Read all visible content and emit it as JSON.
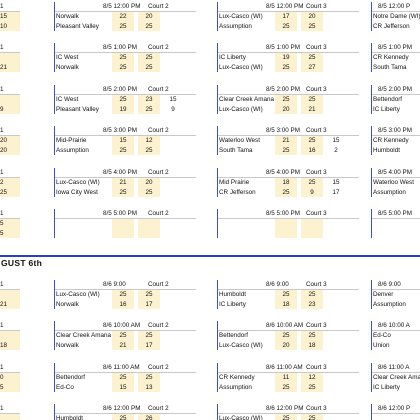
{
  "day_title": "GUST 6th",
  "left_edge_day1": [
    {
      "header": "1",
      "r1": "15",
      "r2": "10"
    },
    {
      "header": "1",
      "r1": "",
      "r2": "21"
    },
    {
      "header": "1",
      "r1": "",
      "r2": "9"
    },
    {
      "header": "1",
      "r1": "20",
      "r2": "20"
    },
    {
      "header": "1",
      "r1": "2",
      "r2": "25"
    },
    {
      "header": "1",
      "r1": "5",
      "r2": "5"
    }
  ],
  "left_edge_day2": [
    {
      "header": "1",
      "r1": "",
      "r2": "21"
    },
    {
      "header": "1",
      "r1": "",
      "r2": "18"
    },
    {
      "header": "1",
      "r1": "0",
      "r2": "5"
    },
    {
      "header": "1",
      "r1": "",
      "r2": ""
    }
  ],
  "col1_day1": [
    {
      "time": "8/5 12:00 PM",
      "court": "Court 2",
      "t1": "Norwalk",
      "s11": "22",
      "s12": "20",
      "s13": "",
      "t2": "Pleasant Valley",
      "s21": "25",
      "s22": "25",
      "s23": ""
    },
    {
      "time": "8/5 1:00 PM",
      "court": "Court 2",
      "t1": "IC West",
      "s11": "25",
      "s12": "25",
      "s13": "",
      "t2": "Norwalk",
      "s21": "25",
      "s22": "25",
      "s23": ""
    },
    {
      "time": "8/5 2:00 PM",
      "court": "Court 2",
      "t1": "IC West",
      "s11": "25",
      "s12": "23",
      "s13": "15",
      "t2": "Pleasant Valley",
      "s21": "19",
      "s22": "25",
      "s23": "9"
    },
    {
      "time": "8/5 3:00 PM",
      "court": "Court 2",
      "t1": "Mid-Prairie",
      "s11": "15",
      "s12": "12",
      "s13": "",
      "t2": "Assumption",
      "s21": "25",
      "s22": "25",
      "s23": ""
    },
    {
      "time": "8/5 4:00 PM",
      "court": "Court 2",
      "t1": "Lux-Casco (WI)",
      "s11": "21",
      "s12": "20",
      "s13": "",
      "t2": "Iowa City West",
      "s21": "25",
      "s22": "25",
      "s23": ""
    },
    {
      "time": "8/5 5:00 PM",
      "court": "Court 2",
      "t1": "",
      "s11": "",
      "s12": "",
      "s13": "",
      "t2": "",
      "s21": "",
      "s22": "",
      "s23": ""
    }
  ],
  "col2_day1": [
    {
      "time": "8/5 12:00 PM",
      "court": "Court 3",
      "t1": "Lux-Casco (WI)",
      "s11": "17",
      "s12": "20",
      "s13": "",
      "t2": "Assumption",
      "s21": "25",
      "s22": "25",
      "s23": ""
    },
    {
      "time": "8/5 1:00 PM",
      "court": "Court 3",
      "t1": "IC Liberty",
      "s11": "19",
      "s12": "25",
      "s13": "",
      "t2": "Lux-Casco (WI)",
      "s21": "25",
      "s22": "27",
      "s23": ""
    },
    {
      "time": "8/5 2:00 PM",
      "court": "Court 3",
      "t1": "Clear Creek Amana",
      "s11": "25",
      "s12": "25",
      "s13": "",
      "t2": "Lux-Casco (WI)",
      "s21": "20",
      "s22": "21",
      "s23": ""
    },
    {
      "time": "8/5 3:00 PM",
      "court": "Court 3",
      "t1": "Waterloo West",
      "s11": "21",
      "s12": "25",
      "s13": "15",
      "t2": "South Tama",
      "s21": "25",
      "s22": "16",
      "s23": "2"
    },
    {
      "time": "8/5 4:00 PM",
      "court": "Court 3",
      "t1": "Mid Prairie",
      "s11": "18",
      "s12": "25",
      "s13": "15",
      "t2": "CR Jefferson",
      "s21": "25",
      "s22": "9",
      "s23": "17"
    },
    {
      "time": "8/5 5:00 PM",
      "court": "Court 3",
      "t1": "",
      "s11": "",
      "s12": "",
      "s13": "",
      "t2": "",
      "s21": "",
      "s22": "",
      "s23": ""
    }
  ],
  "col3_day1": [
    {
      "time": "8/5 12:00 P",
      "t1": "Notre Dame (WI)",
      "t2": "CR Jefferson"
    },
    {
      "time": "8/5 1:00 PM",
      "t1": "CR Kennedy",
      "t2": "South Tama"
    },
    {
      "time": "8/5 2:00 PM",
      "t1": "Bettendorf",
      "t2": "IC Liberty"
    },
    {
      "time": "8/5 3:00 PM",
      "t1": "CR Kennedy",
      "t2": "Humboldt"
    },
    {
      "time": "8/5 4:00 PM",
      "t1": "Waterloo West",
      "t2": "Assumption"
    },
    {
      "time": "8/5 5:00 PM",
      "t1": "",
      "t2": ""
    }
  ],
  "col1_day2": [
    {
      "time": "8/6 9:00",
      "court": "Court 2",
      "t1": "Lux-Casco (WI)",
      "s11": "25",
      "s12": "25",
      "s13": "",
      "t2": "Norwalk",
      "s21": "16",
      "s22": "17",
      "s23": ""
    },
    {
      "time": "8/6 10:00 AM",
      "court": "Court 2",
      "t1": "Clear Creek Amana",
      "s11": "25",
      "s12": "25",
      "s13": "",
      "t2": "Norwalk",
      "s21": "21",
      "s22": "17",
      "s23": ""
    },
    {
      "time": "8/6 11:00 AM",
      "court": "Court 2",
      "t1": "Bettendorf",
      "s11": "25",
      "s12": "25",
      "s13": "",
      "t2": "Ed-Co",
      "s21": "15",
      "s22": "13",
      "s23": ""
    },
    {
      "time": "8/6 12:00 PM",
      "court": "Court 2",
      "t1": "Humboldt",
      "s11": "25",
      "s12": "26",
      "s13": "",
      "t2": "",
      "s21": "",
      "s22": "",
      "s23": ""
    }
  ],
  "col2_day2": [
    {
      "time": "8/6 9:00",
      "court": "Court 3",
      "t1": "Humboldt",
      "s11": "25",
      "s12": "25",
      "s13": "",
      "t2": "IC Liberty",
      "s21": "18",
      "s22": "23",
      "s23": ""
    },
    {
      "time": "8/6 10:00 AM",
      "court": "Court 3",
      "t1": "Bettendorf",
      "s11": "25",
      "s12": "25",
      "s13": "",
      "t2": "Lux-Casco (WI)",
      "s21": "20",
      "s22": "18",
      "s23": ""
    },
    {
      "time": "8/6 11:00 AM",
      "court": "Court 3",
      "t1": "CR Kennedy",
      "s11": "11",
      "s12": "12",
      "s13": "",
      "t2": "Assumption",
      "s21": "25",
      "s22": "25",
      "s23": ""
    },
    {
      "time": "8/6 12:00 PM",
      "court": "Court 3",
      "t1": "Lux-Casco (WI)",
      "s11": "25",
      "s12": "25",
      "s13": "",
      "t2": "",
      "s21": "",
      "s22": "",
      "s23": ""
    }
  ],
  "col3_day2": [
    {
      "time": "8/6 9:00",
      "t1": "Denver",
      "t2": "Assumption"
    },
    {
      "time": "8/6 10:00 A",
      "t1": "Ed-Co",
      "t2": "Union"
    },
    {
      "time": "8/6 11:00 A",
      "t1": "Clear Creek Ama",
      "t2": "IC Liberty"
    },
    {
      "time": "8/6 12:00 P",
      "t1": "",
      "t2": ""
    }
  ]
}
